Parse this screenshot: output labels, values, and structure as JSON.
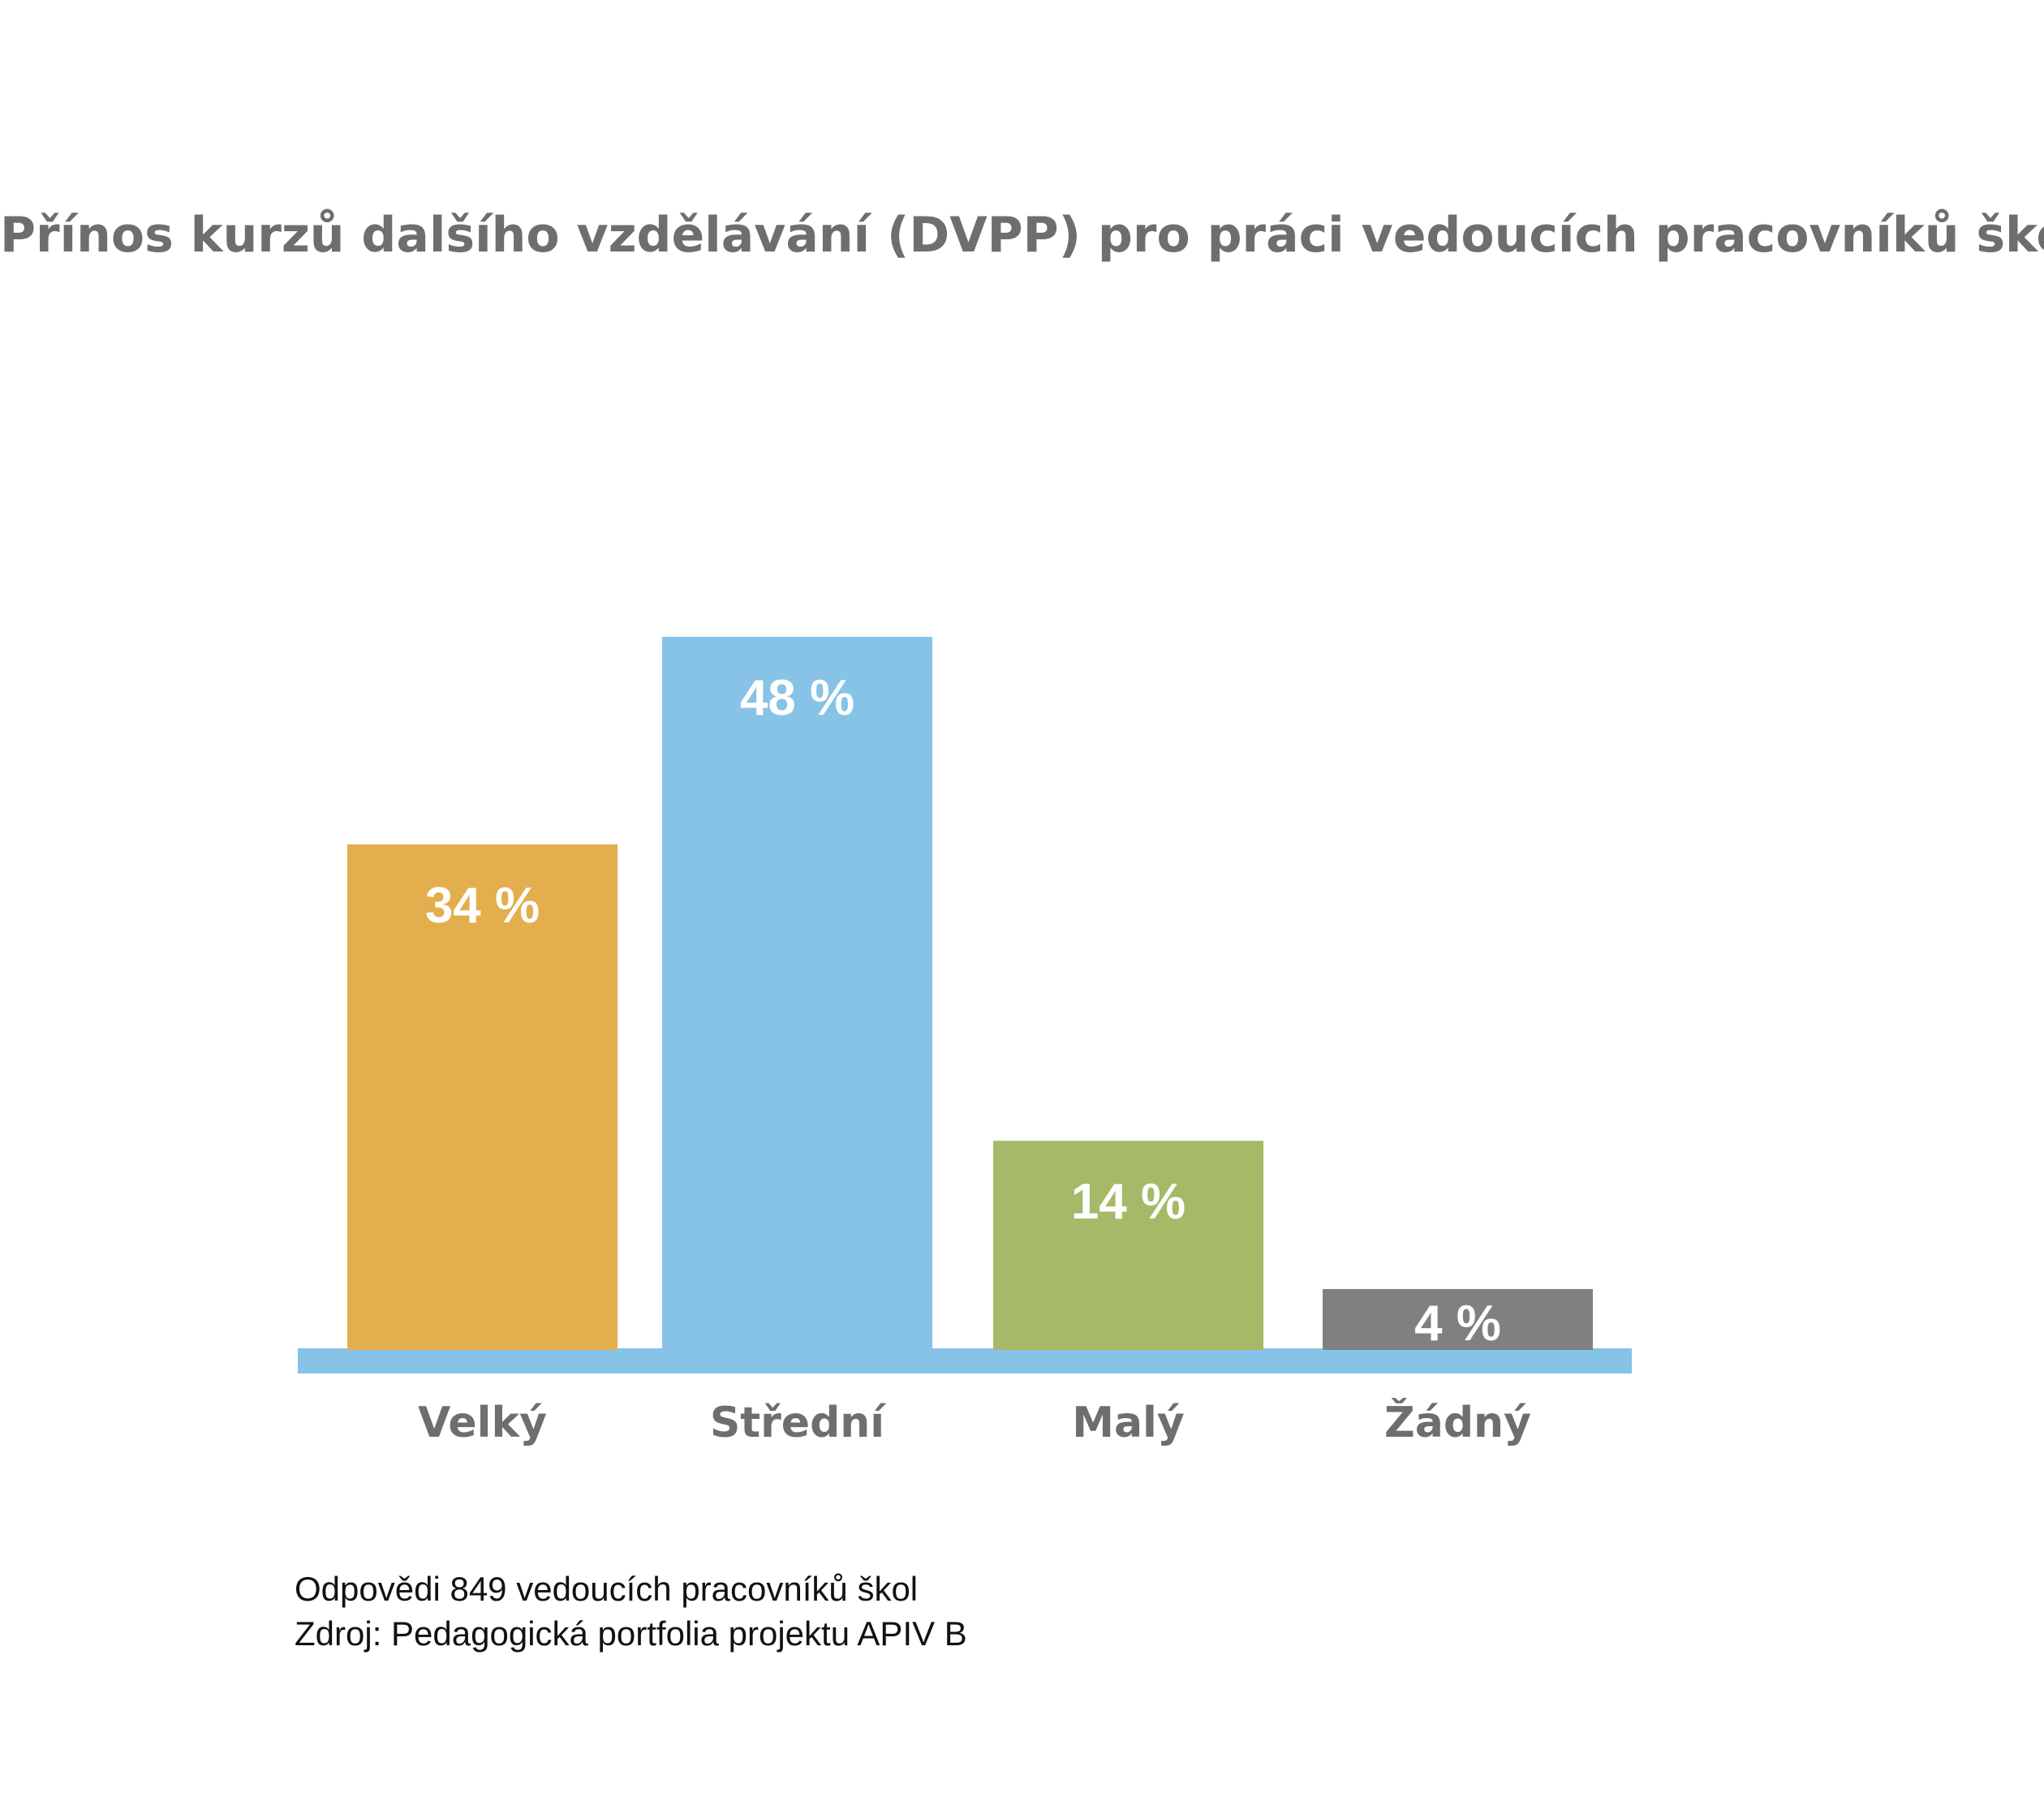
{
  "chart_data": {
    "type": "bar",
    "title": "Přínos kurzů dalšího vzdělávání (DVPP) pro práci vedoucích pracovníků škol",
    "categories": [
      "Velký",
      "Střední",
      "Malý",
      "Žádný"
    ],
    "values": [
      34,
      48,
      14,
      4
    ],
    "value_labels": [
      "34 %",
      "48 %",
      "14 %",
      "4 %"
    ],
    "colors": [
      "#e3ae4d",
      "#86c3e6",
      "#a6b968",
      "#808082"
    ],
    "axis_color": "#86c3e6",
    "ylim": [
      0,
      48
    ],
    "xlabel": "",
    "ylabel": "",
    "grid": false
  },
  "notes": {
    "respondents": "Odpovědi 849 vedoucích pracovníků škol",
    "source": "Zdroj: Pedagogická portfolia projektu APIV B"
  }
}
